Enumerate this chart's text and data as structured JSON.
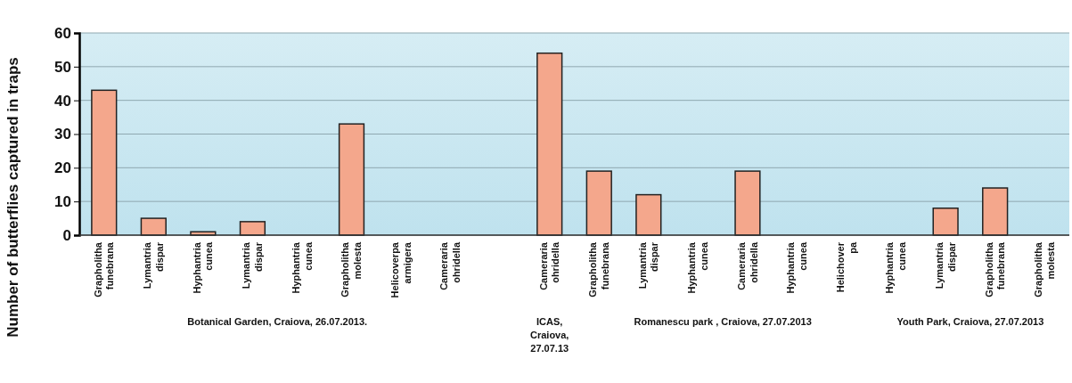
{
  "chart_data": {
    "type": "bar",
    "ylabel": "Number of butterflies captured in traps",
    "categories": [
      "Grapholitha funebrana",
      "Lymantria dispar",
      "Hyphantria cunea",
      "Lymantria dispar",
      "Hyphantria cunea",
      "Grapholitha molesta",
      "Helicoverpa armigera",
      "Cameraria ohridella",
      null,
      "Cameraria ohridella",
      "Grapholitha funebrana",
      "Lymantria dispar",
      "Hyphantria cunea",
      "Cameraria ohridella",
      "Hyphantria cunea",
      "Helichover pa",
      "Hyphantria cunea",
      "Lymantria dispar",
      "Grapholitha funebrana",
      "Grapholitha molesta"
    ],
    "values": [
      43,
      5,
      1,
      4,
      0,
      33,
      0,
      0,
      null,
      54,
      19,
      12,
      0,
      19,
      0,
      0,
      0,
      8,
      14,
      0
    ],
    "color": "#f4a78c",
    "ylim": [
      0,
      60
    ],
    "yticks": [
      0,
      10,
      20,
      30,
      40,
      50,
      60
    ],
    "grid": "y",
    "annotations": [
      "Botanical Garden, Craiova, 26.07.2013.",
      "ICAS, Craiova, 27.07.13",
      "Romanescu park , Craiova, 27.07.2013",
      "Youth Park, Craiova, 27.07.2013"
    ]
  }
}
